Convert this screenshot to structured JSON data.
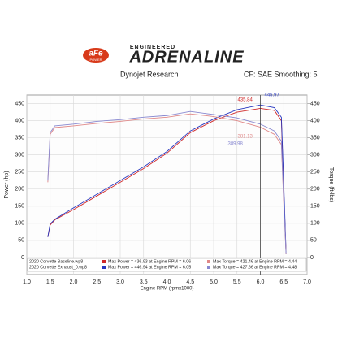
{
  "header": {
    "logo": "aFe",
    "logo_sub": "POWER",
    "tagline": "ENGINEERED",
    "brand": "ADRENALINE",
    "left_note": "Dynojet Research",
    "right_note": "CF: SAE Smoothing: 5"
  },
  "chart_data": {
    "type": "line",
    "y_label": "Power (hp)",
    "y2_label": "Torque (ft-lbs)",
    "x_label": "Engine RPM (rpmx1000)",
    "x": [
      1.45,
      1.5,
      1.6,
      2.0,
      2.5,
      3.0,
      3.5,
      4.0,
      4.5,
      5.0,
      5.5,
      6.0,
      6.3,
      6.45,
      6.5,
      6.55
    ],
    "series": [
      {
        "name": "2020 Corvette Baseline.wp8 Power",
        "color": "#d02828",
        "values": [
          60,
          95,
          110,
          140,
          180,
          220,
          260,
          305,
          365,
          400,
          425,
          436,
          430,
          400,
          200,
          10
        ]
      },
      {
        "name": "2020 Corvette Exhaust_0.wp8 Power",
        "color": "#2838c0",
        "values": [
          60,
          98,
          112,
          145,
          185,
          225,
          265,
          310,
          370,
          405,
          432,
          446,
          438,
          410,
          220,
          15
        ]
      },
      {
        "name": "2020 Corvette Baseline.wp8 Torque",
        "color": "#e08888",
        "axis": "y2",
        "values": [
          220,
          360,
          380,
          385,
          392,
          398,
          405,
          410,
          420,
          412,
          400,
          381,
          360,
          330,
          160,
          10
        ]
      },
      {
        "name": "2020 Corvette Exhaust_0.wp8 Torque",
        "color": "#8888d0",
        "axis": "y2",
        "values": [
          225,
          365,
          385,
          390,
          398,
          403,
          410,
          415,
          427,
          418,
          408,
          390,
          370,
          340,
          170,
          10
        ]
      }
    ],
    "annotations": [
      "435.84",
      "445.97",
      "381.13",
      "389.98"
    ],
    "cursor_x": 6.0,
    "xlim": [
      1.0,
      7.0
    ],
    "xticks": [
      {
        "value": 1,
        "label": "1.0"
      },
      1.5,
      {
        "value": 2,
        "label": "2.0"
      },
      2.5,
      {
        "value": 3,
        "label": "3.0"
      },
      3.5,
      {
        "value": 4,
        "label": "4.0"
      },
      4.5,
      {
        "value": 5,
        "label": "5.0"
      },
      5.5,
      {
        "value": 6,
        "label": "6.0"
      },
      6.5,
      {
        "value": 7,
        "label": "7.0"
      }
    ],
    "ylim": [
      -50,
      475
    ],
    "yticks": [
      0,
      50,
      100,
      150,
      200,
      250,
      300,
      350,
      400,
      450
    ],
    "y2lim": [
      -50,
      475
    ],
    "y2ticks": [
      0,
      50,
      100,
      150,
      200,
      250,
      300,
      350,
      400,
      450
    ],
    "grid": true,
    "legend": [
      {
        "file": "2020 Corvette Baseline.wp8",
        "max_power": "Max Power = 436.93 at Engine RPM = 6.06",
        "max_torque": "Max Torque = 421.46 at Engine RPM = 4.44"
      },
      {
        "file": "2020 Corvette Exhaust_0.wp8",
        "max_power": "Max Power = 446.94 at Engine RPM = 6.05",
        "max_torque": "Max Torque = 427.66 at Engine RPM = 4.48"
      }
    ]
  }
}
